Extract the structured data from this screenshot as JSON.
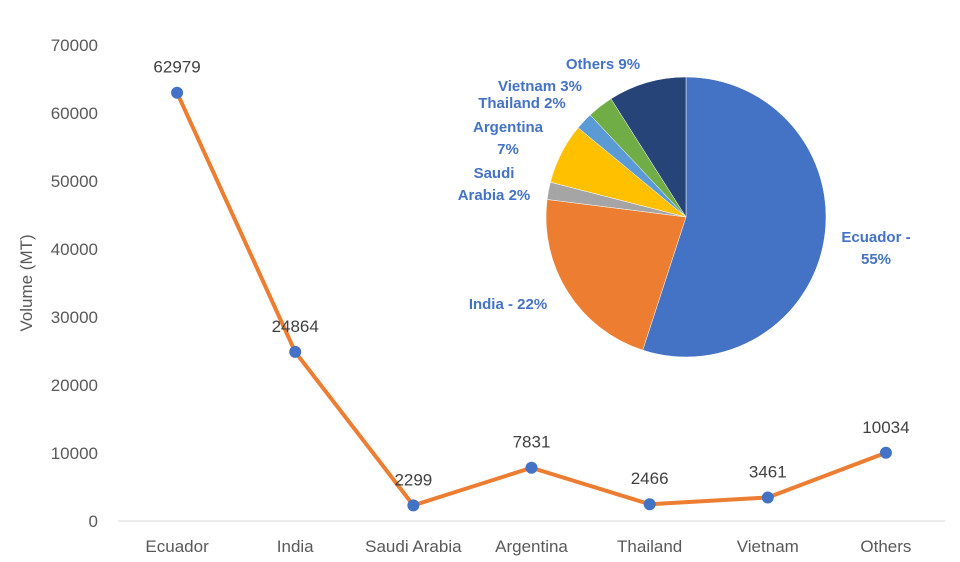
{
  "chart_data": [
    {
      "type": "line",
      "ylabel": "Volume (MT)",
      "ylim": [
        0,
        70000
      ],
      "yticks": [
        0,
        10000,
        20000,
        30000,
        40000,
        50000,
        60000,
        70000
      ],
      "grid": false,
      "categories": [
        "Ecuador",
        "India",
        "Saudi Arabia",
        "Argentina",
        "Thailand",
        "Vietnam",
        "Others"
      ],
      "series": [
        {
          "values": [
            62979,
            24864,
            2299,
            7831,
            2466,
            3461,
            10034
          ],
          "color": "#ED7D31",
          "marker_color": "#4472C4"
        }
      ],
      "data_labels": [
        "62979",
        "24864",
        "2299",
        "7831",
        "2466",
        "3461",
        "10034"
      ]
    },
    {
      "type": "pie",
      "label_color": "#4472C4",
      "slices": [
        {
          "name": "Ecuador",
          "value": 55,
          "label": [
            "Ecuador -",
            "55%"
          ],
          "color": "#4472C4"
        },
        {
          "name": "India",
          "value": 22,
          "label": [
            "India - 22%"
          ],
          "color": "#ED7D31"
        },
        {
          "name": "Saudi Arabia",
          "value": 2,
          "label": [
            "Saudi",
            "Arabia 2%"
          ],
          "color": "#A5A5A5"
        },
        {
          "name": "Argentina",
          "value": 7,
          "label": [
            "Argentina",
            "7%"
          ],
          "color": "#FFC000"
        },
        {
          "name": "Thailand",
          "value": 2,
          "label": [
            "Thailand 2%"
          ],
          "color": "#5B9BD5"
        },
        {
          "name": "Vietnam",
          "value": 3,
          "label": [
            "Vietnam 3%"
          ],
          "color": "#70AD47"
        },
        {
          "name": "Others",
          "value": 9,
          "label": [
            "Others 9%"
          ],
          "color": "#264478"
        }
      ]
    }
  ]
}
